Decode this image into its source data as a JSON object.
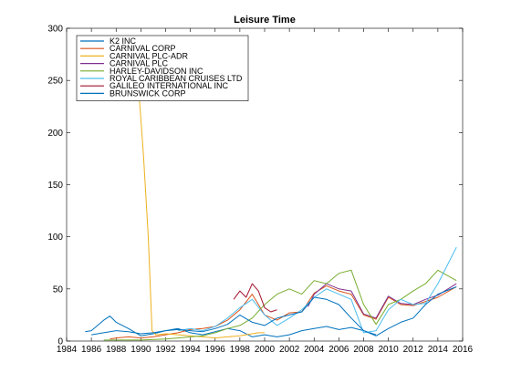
{
  "chart_data": {
    "type": "line",
    "title": "Leisure Time",
    "xlabel": "",
    "ylabel": "",
    "xlim": [
      1984,
      2016
    ],
    "ylim": [
      0,
      300
    ],
    "xticks": [
      1984,
      1986,
      1988,
      1990,
      1992,
      1994,
      1996,
      1998,
      2000,
      2002,
      2004,
      2006,
      2008,
      2010,
      2012,
      2014,
      2016
    ],
    "yticks": [
      0,
      50,
      100,
      150,
      200,
      250,
      300
    ],
    "grid": false,
    "legend_position": "top-left",
    "series": [
      {
        "name": "K2 INC",
        "color": "#0072bd",
        "x": [
          1985.5,
          1986,
          1987,
          1987.5,
          1988,
          1989,
          1990,
          1991,
          1992,
          1993,
          1994,
          1995,
          1996,
          1997,
          1998,
          1999,
          2000,
          2001,
          2002,
          2003,
          2004,
          2005,
          2006,
          2007,
          2008,
          2009
        ],
        "y": [
          9,
          10,
          20,
          24,
          18,
          12,
          5,
          7,
          10,
          12,
          8,
          6,
          9,
          12,
          10,
          4,
          6,
          4,
          6,
          10,
          12,
          14,
          11,
          13,
          10,
          6
        ]
      },
      {
        "name": "CARNIVAL CORP",
        "color": "#d95319",
        "x": [
          1987.5,
          1988,
          1989,
          1990,
          1991,
          1992,
          1993,
          1994,
          1995,
          1996,
          1997,
          1998,
          1999,
          2000,
          2001,
          2002,
          2003,
          2004,
          2005,
          2006,
          2007,
          2008,
          2009,
          2010,
          2011,
          2012,
          2013,
          2014,
          2015.5
        ],
        "y": [
          2,
          3,
          4,
          3,
          4,
          6,
          8,
          11,
          12,
          14,
          20,
          30,
          45,
          25,
          20,
          27,
          28,
          46,
          53,
          48,
          45,
          25,
          21,
          42,
          35,
          34,
          38,
          42,
          52
        ]
      },
      {
        "name": "CARNIVAL PLC-ADR",
        "color": "#edb120",
        "x": [
          1989.8,
          1990.2,
          1990.6,
          1990.9,
          1991.2,
          1992,
          1993,
          1994,
          1995,
          1996,
          1997,
          1998,
          1999.5,
          2000
        ],
        "y": [
          245,
          180,
          100,
          10,
          6,
          7,
          6,
          5,
          4,
          3,
          4,
          5,
          8,
          8
        ]
      },
      {
        "name": "CARNIVAL PLC",
        "color": "#7e2f8e",
        "x": [
          2003.5,
          2004,
          2005,
          2006,
          2007,
          2008,
          2009,
          2010,
          2011,
          2012,
          2013,
          2014,
          2015.5
        ],
        "y": [
          33,
          45,
          55,
          50,
          48,
          26,
          22,
          43,
          36,
          35,
          40,
          44,
          55
        ]
      },
      {
        "name": "HARLEY-DAVIDSON INC",
        "color": "#77ac30",
        "x": [
          1987,
          1988,
          1990,
          1992,
          1993,
          1994,
          1995,
          1996,
          1997,
          1998,
          1999,
          2000,
          2001,
          2002,
          2003,
          2004,
          2005,
          2006,
          2007,
          2008,
          2009,
          2010,
          2011,
          2012,
          2013,
          2014,
          2015.5
        ],
        "y": [
          1,
          1,
          1,
          2,
          3,
          4,
          5,
          8,
          12,
          15,
          22,
          35,
          45,
          50,
          45,
          58,
          55,
          65,
          68,
          35,
          16,
          35,
          40,
          48,
          55,
          68,
          58
        ]
      },
      {
        "name": "ROYAL CARIBBEAN CRUISES LTD",
        "color": "#4dbeee",
        "x": [
          1993,
          1994,
          1995,
          1996,
          1997,
          1998,
          1999,
          2000,
          2001,
          2002,
          2003,
          2004,
          2005,
          2006,
          2007,
          2008,
          2009,
          2010,
          2011,
          2012,
          2013,
          2014,
          2015.5
        ],
        "y": [
          10,
          12,
          10,
          14,
          22,
          32,
          40,
          25,
          15,
          22,
          30,
          42,
          50,
          45,
          40,
          8,
          10,
          30,
          40,
          35,
          36,
          55,
          90
        ]
      },
      {
        "name": "GALILEO INTERNATIONAL INC",
        "color": "#a2142f",
        "x": [
          1997.5,
          1998,
          1998.5,
          1999,
          1999.5,
          2000,
          2000.5,
          2001
        ],
        "y": [
          40,
          48,
          42,
          55,
          48,
          32,
          28,
          30
        ]
      },
      {
        "name": "BRUNSWICK CORP",
        "color": "#0072bd",
        "x": [
          1986,
          1987,
          1988,
          1989,
          1990,
          1991,
          1992,
          1993,
          1994,
          1995,
          1996,
          1997,
          1998,
          1999,
          2000,
          2001,
          2002,
          2003,
          2004,
          2005,
          2006,
          2007,
          2008,
          2009,
          2010,
          2011,
          2012,
          2013,
          2014,
          2015.5
        ],
        "y": [
          6,
          8,
          10,
          9,
          7,
          8,
          10,
          11,
          10,
          9,
          12,
          16,
          25,
          18,
          15,
          22,
          25,
          28,
          42,
          40,
          35,
          22,
          10,
          5,
          12,
          18,
          22,
          35,
          45,
          52
        ]
      }
    ]
  }
}
